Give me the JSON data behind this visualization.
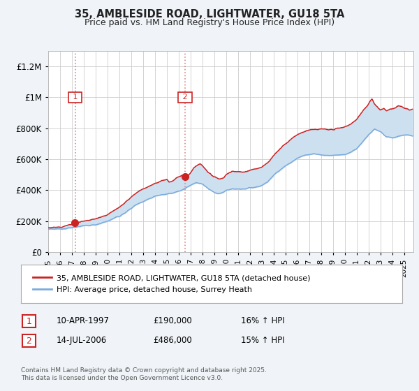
{
  "title": "35, AMBLESIDE ROAD, LIGHTWATER, GU18 5TA",
  "subtitle": "Price paid vs. HM Land Registry's House Price Index (HPI)",
  "bg_color": "#f0f4f8",
  "plot_bg_color": "#ffffff",
  "legend_label_red": "35, AMBLESIDE ROAD, LIGHTWATER, GU18 5TA (detached house)",
  "legend_label_blue": "HPI: Average price, detached house, Surrey Heath",
  "footer": "Contains HM Land Registry data © Crown copyright and database right 2025.\nThis data is licensed under the Open Government Licence v3.0.",
  "sale1_date": "10-APR-1997",
  "sale1_price": "£190,000",
  "sale1_hpi": "16% ↑ HPI",
  "sale2_date": "14-JUL-2006",
  "sale2_price": "£486,000",
  "sale2_hpi": "15% ↑ HPI",
  "sale1_year": 1997.27,
  "sale1_value": 190000,
  "sale2_year": 2006.54,
  "sale2_value": 486000,
  "vline1_x": 1997.27,
  "vline2_x": 2006.54,
  "red_color": "#cc2222",
  "blue_color": "#7aaadd",
  "fill_color": "#cce0f0",
  "vline_color": "#dd8888",
  "ylim_min": 0,
  "ylim_max": 1300000,
  "xlim_min": 1995.0,
  "xlim_max": 2025.8
}
